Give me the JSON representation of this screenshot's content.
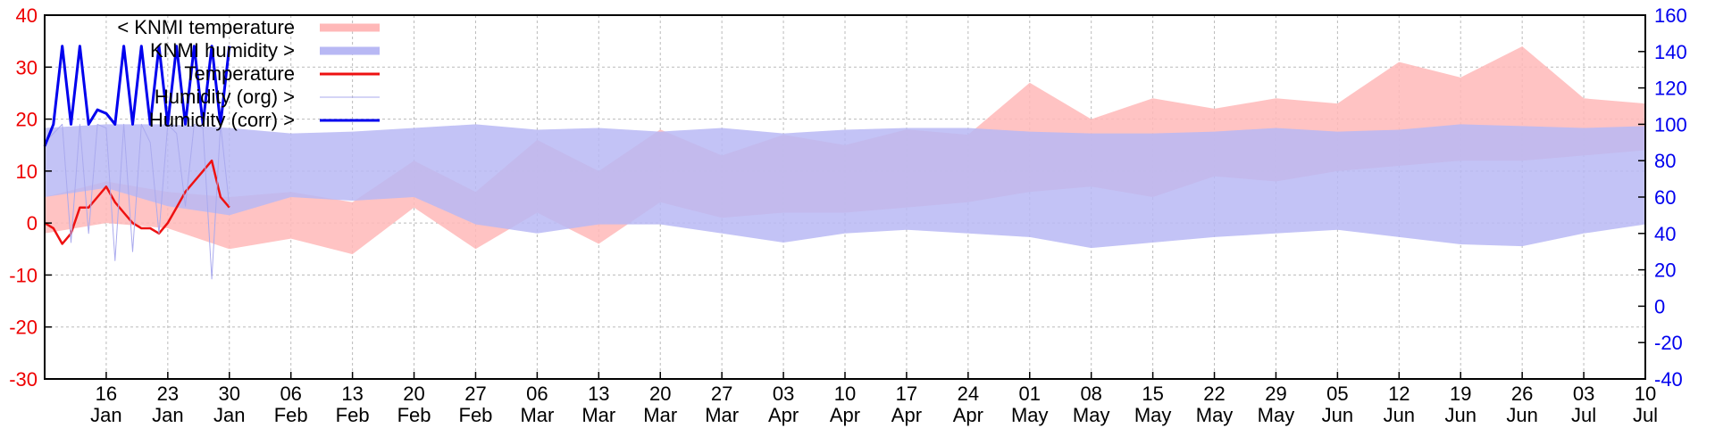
{
  "chart_data": {
    "type": "line",
    "title": "",
    "colors": {
      "knmi_temperature": "#ffb8b8",
      "knmi_humidity": "#b8b8f4",
      "temperature": "#ee1111",
      "humidity_org": "#aaaaee",
      "humidity_corr": "#0000ee",
      "left_axis": "#ee0000",
      "right_axis": "#0000ee",
      "grid": "#bbbbbb"
    },
    "x_range": [
      "2023-01-09",
      "2023-07-10"
    ],
    "x_ticks": [
      {
        "date": "2023-01-16",
        "day": "16",
        "month": "Jan"
      },
      {
        "date": "2023-01-23",
        "day": "23",
        "month": "Jan"
      },
      {
        "date": "2023-01-30",
        "day": "30",
        "month": "Jan"
      },
      {
        "date": "2023-02-06",
        "day": "06",
        "month": "Feb"
      },
      {
        "date": "2023-02-13",
        "day": "13",
        "month": "Feb"
      },
      {
        "date": "2023-02-20",
        "day": "20",
        "month": "Feb"
      },
      {
        "date": "2023-02-27",
        "day": "27",
        "month": "Feb"
      },
      {
        "date": "2023-03-06",
        "day": "06",
        "month": "Mar"
      },
      {
        "date": "2023-03-13",
        "day": "13",
        "month": "Mar"
      },
      {
        "date": "2023-03-20",
        "day": "20",
        "month": "Mar"
      },
      {
        "date": "2023-03-27",
        "day": "27",
        "month": "Mar"
      },
      {
        "date": "2023-04-03",
        "day": "03",
        "month": "Apr"
      },
      {
        "date": "2023-04-10",
        "day": "10",
        "month": "Apr"
      },
      {
        "date": "2023-04-17",
        "day": "17",
        "month": "Apr"
      },
      {
        "date": "2023-04-24",
        "day": "24",
        "month": "Apr"
      },
      {
        "date": "2023-05-01",
        "day": "01",
        "month": "May"
      },
      {
        "date": "2023-05-08",
        "day": "08",
        "month": "May"
      },
      {
        "date": "2023-05-15",
        "day": "15",
        "month": "May"
      },
      {
        "date": "2023-05-22",
        "day": "22",
        "month": "May"
      },
      {
        "date": "2023-05-29",
        "day": "29",
        "month": "May"
      },
      {
        "date": "2023-06-05",
        "day": "05",
        "month": "Jun"
      },
      {
        "date": "2023-06-12",
        "day": "12",
        "month": "Jun"
      },
      {
        "date": "2023-06-19",
        "day": "19",
        "month": "Jun"
      },
      {
        "date": "2023-06-26",
        "day": "26",
        "month": "Jun"
      },
      {
        "date": "2023-07-03",
        "day": "03",
        "month": "Jul"
      },
      {
        "date": "2023-07-10",
        "day": "10",
        "month": "Jul"
      }
    ],
    "y_left": {
      "min": -30,
      "max": 40,
      "ticks": [
        -30,
        -20,
        -10,
        0,
        10,
        20,
        30,
        40
      ]
    },
    "y_right": {
      "min": -40,
      "max": 160,
      "ticks": [
        -40,
        -20,
        0,
        20,
        40,
        60,
        80,
        100,
        120,
        140,
        160
      ]
    },
    "grid": true,
    "legend_position": "top-left",
    "series": [
      {
        "name": "< KNMI temperature",
        "key": "knmi_temperature",
        "axis": "left",
        "style": "band",
        "points": [
          [
            "2023-01-09",
            -2,
            5
          ],
          [
            "2023-01-16",
            0,
            8
          ],
          [
            "2023-01-23",
            -1,
            6
          ],
          [
            "2023-01-30",
            -5,
            5
          ],
          [
            "2023-02-06",
            -3,
            6
          ],
          [
            "2023-02-13",
            -6,
            4
          ],
          [
            "2023-02-20",
            3,
            12
          ],
          [
            "2023-02-27",
            -5,
            6
          ],
          [
            "2023-03-06",
            2,
            16
          ],
          [
            "2023-03-13",
            -4,
            10
          ],
          [
            "2023-03-20",
            4,
            18
          ],
          [
            "2023-03-27",
            1,
            13
          ],
          [
            "2023-04-03",
            2,
            17
          ],
          [
            "2023-04-10",
            2,
            15
          ],
          [
            "2023-04-17",
            3,
            18
          ],
          [
            "2023-04-24",
            4,
            17
          ],
          [
            "2023-05-01",
            6,
            27
          ],
          [
            "2023-05-08",
            7,
            20
          ],
          [
            "2023-05-15",
            5,
            24
          ],
          [
            "2023-05-22",
            9,
            22
          ],
          [
            "2023-05-29",
            8,
            24
          ],
          [
            "2023-06-05",
            10,
            23
          ],
          [
            "2023-06-12",
            11,
            31
          ],
          [
            "2023-06-19",
            12,
            28
          ],
          [
            "2023-06-26",
            12,
            34
          ],
          [
            "2023-07-03",
            13,
            24
          ],
          [
            "2023-07-10",
            14,
            23
          ]
        ]
      },
      {
        "name": "KNMI humidity >",
        "key": "knmi_humidity",
        "axis": "right",
        "style": "band",
        "points": [
          [
            "2023-01-09",
            60,
            98
          ],
          [
            "2023-01-16",
            65,
            100
          ],
          [
            "2023-01-23",
            55,
            100
          ],
          [
            "2023-01-30",
            50,
            98
          ],
          [
            "2023-02-06",
            60,
            95
          ],
          [
            "2023-02-13",
            58,
            96
          ],
          [
            "2023-02-20",
            60,
            98
          ],
          [
            "2023-02-27",
            45,
            100
          ],
          [
            "2023-03-06",
            40,
            97
          ],
          [
            "2023-03-13",
            45,
            98
          ],
          [
            "2023-03-20",
            45,
            96
          ],
          [
            "2023-03-27",
            40,
            98
          ],
          [
            "2023-04-03",
            35,
            95
          ],
          [
            "2023-04-10",
            40,
            97
          ],
          [
            "2023-04-17",
            42,
            98
          ],
          [
            "2023-04-24",
            40,
            98
          ],
          [
            "2023-05-01",
            38,
            96
          ],
          [
            "2023-05-08",
            32,
            95
          ],
          [
            "2023-05-15",
            35,
            95
          ],
          [
            "2023-05-22",
            38,
            96
          ],
          [
            "2023-05-29",
            40,
            98
          ],
          [
            "2023-06-05",
            42,
            96
          ],
          [
            "2023-06-12",
            38,
            97
          ],
          [
            "2023-06-19",
            34,
            100
          ],
          [
            "2023-06-26",
            33,
            99
          ],
          [
            "2023-07-03",
            40,
            98
          ],
          [
            "2023-07-10",
            45,
            99
          ]
        ]
      },
      {
        "name": "Temperature",
        "key": "temperature",
        "axis": "left",
        "style": "line",
        "points": [
          [
            "2023-01-09",
            0
          ],
          [
            "2023-01-10",
            -1
          ],
          [
            "2023-01-11",
            -4
          ],
          [
            "2023-01-12",
            -2
          ],
          [
            "2023-01-13",
            3
          ],
          [
            "2023-01-14",
            3
          ],
          [
            "2023-01-15",
            5
          ],
          [
            "2023-01-16",
            7
          ],
          [
            "2023-01-17",
            4
          ],
          [
            "2023-01-18",
            2
          ],
          [
            "2023-01-19",
            0
          ],
          [
            "2023-01-20",
            -1
          ],
          [
            "2023-01-21",
            -1
          ],
          [
            "2023-01-22",
            -2
          ],
          [
            "2023-01-23",
            0
          ],
          [
            "2023-01-24",
            3
          ],
          [
            "2023-01-25",
            6
          ],
          [
            "2023-01-26",
            8
          ],
          [
            "2023-01-27",
            10
          ],
          [
            "2023-01-28",
            12
          ],
          [
            "2023-01-29",
            5
          ],
          [
            "2023-01-30",
            3
          ]
        ]
      },
      {
        "name": "Humidity (org) >",
        "key": "humidity_org",
        "axis": "right",
        "style": "line",
        "points": [
          [
            "2023-01-09",
            90
          ],
          [
            "2023-01-10",
            95
          ],
          [
            "2023-01-11",
            100
          ],
          [
            "2023-01-12",
            35
          ],
          [
            "2023-01-13",
            100
          ],
          [
            "2023-01-14",
            40
          ],
          [
            "2023-01-15",
            100
          ],
          [
            "2023-01-16",
            98
          ],
          [
            "2023-01-17",
            25
          ],
          [
            "2023-01-18",
            100
          ],
          [
            "2023-01-19",
            30
          ],
          [
            "2023-01-20",
            100
          ],
          [
            "2023-01-21",
            90
          ],
          [
            "2023-01-22",
            40
          ],
          [
            "2023-01-23",
            100
          ],
          [
            "2023-01-24",
            95
          ],
          [
            "2023-01-25",
            55
          ],
          [
            "2023-01-26",
            100
          ],
          [
            "2023-01-27",
            98
          ],
          [
            "2023-01-28",
            15
          ],
          [
            "2023-01-29",
            100
          ],
          [
            "2023-01-30",
            55
          ]
        ]
      },
      {
        "name": "Humidity (corr) >",
        "key": "humidity_corr",
        "axis": "right",
        "style": "line",
        "points": [
          [
            "2023-01-09",
            88
          ],
          [
            "2023-01-10",
            100
          ],
          [
            "2023-01-11",
            143
          ],
          [
            "2023-01-12",
            100
          ],
          [
            "2023-01-13",
            143
          ],
          [
            "2023-01-14",
            100
          ],
          [
            "2023-01-15",
            108
          ],
          [
            "2023-01-16",
            106
          ],
          [
            "2023-01-17",
            100
          ],
          [
            "2023-01-18",
            143
          ],
          [
            "2023-01-19",
            100
          ],
          [
            "2023-01-20",
            143
          ],
          [
            "2023-01-21",
            100
          ],
          [
            "2023-01-22",
            143
          ],
          [
            "2023-01-23",
            100
          ],
          [
            "2023-01-24",
            143
          ],
          [
            "2023-01-25",
            100
          ],
          [
            "2023-01-26",
            143
          ],
          [
            "2023-01-27",
            100
          ],
          [
            "2023-01-28",
            143
          ],
          [
            "2023-01-29",
            100
          ],
          [
            "2023-01-30",
            143
          ]
        ]
      }
    ]
  }
}
